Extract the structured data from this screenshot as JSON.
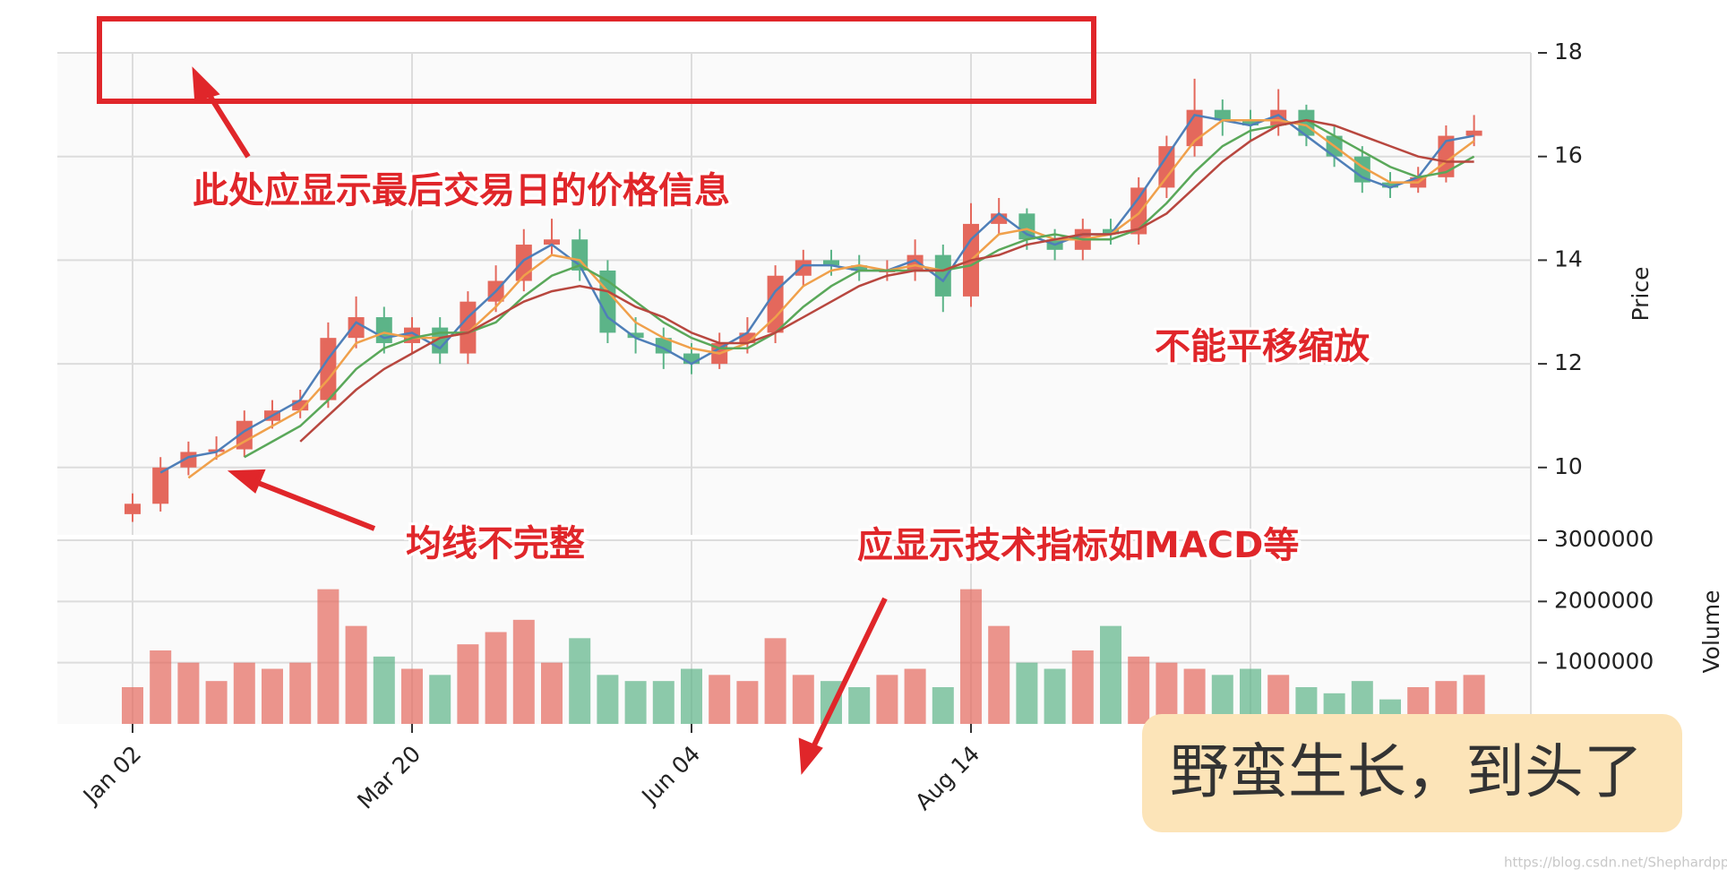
{
  "chart_data": [
    {
      "type": "candlestick",
      "categories": [
        "Jan 02",
        null,
        null,
        null,
        null,
        null,
        null,
        null,
        null,
        null,
        "Mar 20",
        null,
        null,
        null,
        null,
        null,
        null,
        null,
        null,
        null,
        "Jun 04",
        null,
        null,
        null,
        null,
        null,
        null,
        null,
        null,
        null,
        "Aug 14",
        null,
        null,
        null,
        null,
        null,
        null,
        null,
        null,
        null,
        null,
        null,
        null,
        null,
        null,
        null,
        null,
        null,
        null
      ],
      "open": [
        9.1,
        9.3,
        10.0,
        10.3,
        10.35,
        10.9,
        11.1,
        11.3,
        12.5,
        12.9,
        12.4,
        12.7,
        12.2,
        13.2,
        13.6,
        14.3,
        14.4,
        13.8,
        12.6,
        12.5,
        12.2,
        12.0,
        12.4,
        12.6,
        13.7,
        14.0,
        13.9,
        13.8,
        13.8,
        14.1,
        13.3,
        14.7,
        14.9,
        14.4,
        14.2,
        14.6,
        14.5,
        15.4,
        16.2,
        16.9,
        16.7,
        16.6,
        16.9,
        16.4,
        16.0,
        15.5,
        15.4,
        15.6,
        16.4
      ],
      "high": [
        9.5,
        10.2,
        10.5,
        10.6,
        11.1,
        11.3,
        11.5,
        12.8,
        13.3,
        13.1,
        12.9,
        12.9,
        13.4,
        13.9,
        14.6,
        14.8,
        14.6,
        14.0,
        12.9,
        12.7,
        12.4,
        12.6,
        12.9,
        13.9,
        14.2,
        14.2,
        14.1,
        14.0,
        14.4,
        14.3,
        15.1,
        15.2,
        15.0,
        14.6,
        14.8,
        14.8,
        15.6,
        16.4,
        17.5,
        17.1,
        16.9,
        17.3,
        17.0,
        16.6,
        16.2,
        15.7,
        15.8,
        16.6,
        16.8
      ],
      "low": [
        8.95,
        9.15,
        9.85,
        10.15,
        10.2,
        10.75,
        10.95,
        11.15,
        12.3,
        12.2,
        12.2,
        12.0,
        12.0,
        13.0,
        13.4,
        14.1,
        13.6,
        12.4,
        12.2,
        11.9,
        11.8,
        11.9,
        12.2,
        12.4,
        13.5,
        13.7,
        13.6,
        13.6,
        13.6,
        13.0,
        13.1,
        14.5,
        14.2,
        14.0,
        14.0,
        14.3,
        14.3,
        15.2,
        16.0,
        16.4,
        16.3,
        16.4,
        16.2,
        15.8,
        15.3,
        15.2,
        15.3,
        15.5,
        16.2
      ],
      "close": [
        9.3,
        10.0,
        10.3,
        10.35,
        10.9,
        11.1,
        11.3,
        12.5,
        12.9,
        12.4,
        12.7,
        12.2,
        13.2,
        13.6,
        14.3,
        14.4,
        13.8,
        12.6,
        12.5,
        12.2,
        12.0,
        12.4,
        12.6,
        13.7,
        14.0,
        13.9,
        13.8,
        13.8,
        14.1,
        13.3,
        14.7,
        14.9,
        14.4,
        14.2,
        14.6,
        14.5,
        15.4,
        16.2,
        16.9,
        16.7,
        16.6,
        16.9,
        16.4,
        16.0,
        15.5,
        15.4,
        15.6,
        16.4,
        16.5
      ],
      "up_color": "#e4685c",
      "down_color": "#5cb488",
      "series": [
        {
          "color": "#4f7fb8",
          "values": [
            null,
            9.9,
            10.2,
            10.3,
            10.7,
            11.0,
            11.3,
            12.1,
            12.8,
            12.5,
            12.6,
            12.3,
            12.9,
            13.4,
            14.0,
            14.3,
            13.9,
            12.9,
            12.5,
            12.3,
            12.0,
            12.3,
            12.6,
            13.4,
            13.9,
            13.9,
            13.8,
            13.8,
            14.0,
            13.6,
            14.4,
            14.9,
            14.5,
            14.3,
            14.5,
            14.5,
            15.2,
            16.0,
            16.8,
            16.7,
            16.6,
            16.8,
            16.4,
            16.0,
            15.6,
            15.4,
            15.6,
            16.3,
            16.4
          ]
        },
        {
          "color": "#f0a04b",
          "values": [
            null,
            null,
            9.8,
            10.2,
            10.5,
            10.8,
            11.1,
            11.7,
            12.4,
            12.6,
            12.5,
            12.5,
            12.6,
            13.1,
            13.7,
            14.1,
            14.0,
            13.4,
            12.8,
            12.5,
            12.3,
            12.2,
            12.4,
            12.9,
            13.5,
            13.8,
            13.9,
            13.8,
            13.9,
            13.8,
            14.0,
            14.5,
            14.6,
            14.4,
            14.4,
            14.5,
            14.9,
            15.6,
            16.3,
            16.7,
            16.7,
            16.7,
            16.6,
            16.2,
            15.8,
            15.5,
            15.5,
            15.9,
            16.3
          ]
        },
        {
          "color": "#5aa85a",
          "values": [
            null,
            null,
            null,
            null,
            10.2,
            10.5,
            10.8,
            11.3,
            11.9,
            12.3,
            12.5,
            12.6,
            12.6,
            12.8,
            13.3,
            13.7,
            13.9,
            13.6,
            13.2,
            12.8,
            12.5,
            12.3,
            12.3,
            12.6,
            13.1,
            13.5,
            13.8,
            13.8,
            13.8,
            13.8,
            13.9,
            14.2,
            14.4,
            14.5,
            14.4,
            14.4,
            14.6,
            15.1,
            15.7,
            16.2,
            16.5,
            16.6,
            16.7,
            16.4,
            16.1,
            15.8,
            15.6,
            15.7,
            16.0
          ]
        },
        {
          "color": "#b8473f",
          "values": [
            null,
            null,
            null,
            null,
            null,
            null,
            10.5,
            11.0,
            11.5,
            11.9,
            12.2,
            12.5,
            12.6,
            12.9,
            13.2,
            13.4,
            13.5,
            13.4,
            13.1,
            12.9,
            12.6,
            12.4,
            12.4,
            12.6,
            12.9,
            13.2,
            13.5,
            13.7,
            13.8,
            13.8,
            14.0,
            14.1,
            14.3,
            14.4,
            14.5,
            14.5,
            14.6,
            14.9,
            15.4,
            15.9,
            16.3,
            16.6,
            16.7,
            16.6,
            16.4,
            16.2,
            16.0,
            15.9,
            15.9
          ]
        }
      ],
      "ylabel": "Price",
      "ylim": [
        8.7,
        18
      ],
      "yticks": [
        10,
        12,
        14,
        16,
        18
      ],
      "grid": true
    },
    {
      "type": "bar",
      "values": [
        600000,
        1200000,
        1000000,
        700000,
        1000000,
        900000,
        1000000,
        2200000,
        1600000,
        1100000,
        900000,
        800000,
        1300000,
        1500000,
        1700000,
        1000000,
        1400000,
        800000,
        700000,
        700000,
        900000,
        800000,
        700000,
        1400000,
        800000,
        700000,
        600000,
        800000,
        900000,
        600000,
        2200000,
        1600000,
        1000000,
        900000,
        1200000,
        1600000,
        1100000,
        1000000,
        900000,
        800000,
        900000,
        800000,
        600000,
        500000,
        700000,
        400000,
        600000,
        700000,
        800000
      ],
      "ylabel": "Volume",
      "ylim": [
        0,
        3000000
      ],
      "yticks": [
        1000000,
        2000000,
        3000000
      ],
      "grid": true
    }
  ],
  "annotations": [
    "此处应显示最后交易日的价格信息",
    "均线不完整",
    "不能平移缩放",
    "应显示技术指标如MACD等"
  ],
  "caption": "野蛮生长，到头了",
  "watermark": "https://blog.csdn.net/Shephardppz"
}
